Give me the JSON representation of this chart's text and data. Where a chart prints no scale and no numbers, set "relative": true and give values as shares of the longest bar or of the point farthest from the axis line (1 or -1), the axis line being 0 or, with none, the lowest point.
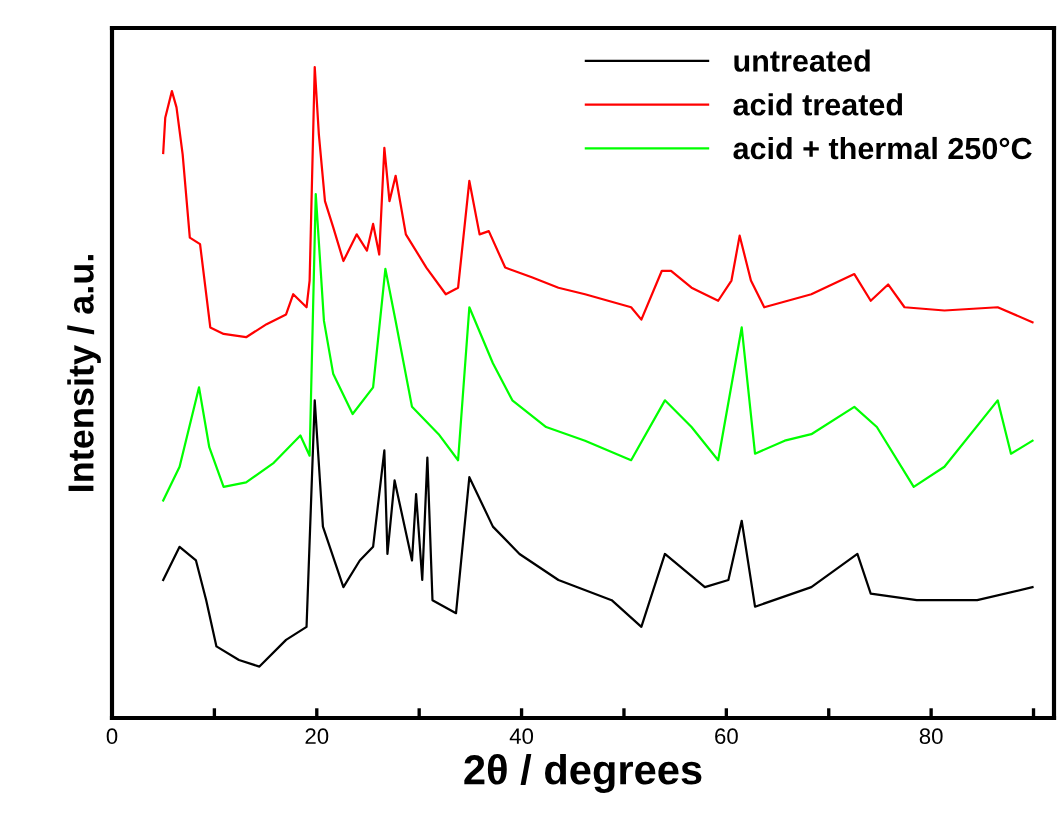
{
  "chart_data": {
    "type": "line",
    "relative": true,
    "xlabel": "2θ / degrees",
    "ylabel": "Intensity / a.u.",
    "xlim": [
      0,
      92
    ],
    "xticks": [
      0,
      {
        "value": 10,
        "label": null
      },
      20,
      {
        "value": 30,
        "label": null
      },
      40,
      {
        "value": 50,
        "label": null
      },
      60,
      {
        "value": 70,
        "label": null
      },
      80,
      {
        "value": 90,
        "label": null
      }
    ],
    "tick_labels": "x",
    "legend": "top right",
    "grid": false,
    "marker": "none",
    "line_style": "solid",
    "series": [
      {
        "name": "untreated",
        "color": "#000000",
        "x": [
          5.0,
          6.6,
          8.2,
          9.2,
          10.2,
          12.4,
          14.4,
          17.0,
          19.0,
          19.8,
          20.6,
          22.6,
          24.2,
          25.5,
          26.6,
          26.9,
          27.6,
          29.3,
          29.7,
          30.3,
          30.8,
          31.3,
          33.6,
          34.9,
          37.2,
          39.8,
          43.6,
          48.8,
          51.7,
          54.0,
          57.9,
          60.2,
          61.5,
          62.8,
          68.3,
          72.8,
          74.1,
          78.6,
          84.5,
          89.9
        ],
        "values": [
          0.212,
          0.263,
          0.242,
          0.181,
          0.11,
          0.089,
          0.079,
          0.12,
          0.14,
          0.488,
          0.294,
          0.201,
          0.242,
          0.263,
          0.411,
          0.252,
          0.365,
          0.242,
          0.344,
          0.212,
          0.4,
          0.181,
          0.161,
          0.37,
          0.294,
          0.252,
          0.212,
          0.181,
          0.14,
          0.252,
          0.201,
          0.212,
          0.303,
          0.171,
          0.201,
          0.252,
          0.191,
          0.181,
          0.181,
          0.201
        ]
      },
      {
        "name": "acid treated",
        "color": "#ff0000",
        "x": [
          5.0,
          5.2,
          5.85,
          6.3,
          6.9,
          7.6,
          8.6,
          9.6,
          10.9,
          13.1,
          15.1,
          17.0,
          17.7,
          19.0,
          19.3,
          19.8,
          20.2,
          20.8,
          21.6,
          22.6,
          23.9,
          24.9,
          25.5,
          26.1,
          26.6,
          27.1,
          27.7,
          28.7,
          30.7,
          32.6,
          33.8,
          34.9,
          35.9,
          36.8,
          38.4,
          41.0,
          43.6,
          46.2,
          50.7,
          51.7,
          53.7,
          54.6,
          56.6,
          59.2,
          60.5,
          61.3,
          62.4,
          63.7,
          68.3,
          72.5,
          74.1,
          75.8,
          77.4,
          81.3,
          86.5,
          89.9
        ],
        "values": [
          0.868,
          0.922,
          0.963,
          0.938,
          0.866,
          0.738,
          0.728,
          0.6,
          0.59,
          0.585,
          0.605,
          0.62,
          0.651,
          0.631,
          0.672,
          1.0,
          0.897,
          0.794,
          0.754,
          0.702,
          0.743,
          0.718,
          0.759,
          0.712,
          0.876,
          0.794,
          0.833,
          0.743,
          0.692,
          0.651,
          0.661,
          0.825,
          0.743,
          0.748,
          0.692,
          0.677,
          0.661,
          0.651,
          0.631,
          0.612,
          0.687,
          0.687,
          0.661,
          0.641,
          0.672,
          0.741,
          0.672,
          0.631,
          0.651,
          0.682,
          0.641,
          0.666,
          0.631,
          0.626,
          0.631,
          0.608
        ]
      },
      {
        "name": "acid + thermal 250°C",
        "color": "#00ff00",
        "x": [
          5.0,
          6.6,
          8.5,
          9.5,
          10.9,
          13.1,
          15.8,
          18.4,
          19.3,
          19.9,
          20.7,
          21.6,
          23.5,
          25.5,
          26.7,
          27.7,
          29.3,
          31.9,
          33.8,
          34.9,
          37.2,
          39.1,
          42.4,
          46.2,
          50.7,
          54.0,
          56.6,
          59.2,
          61.5,
          62.8,
          65.7,
          68.3,
          72.5,
          74.7,
          78.3,
          81.3,
          86.5,
          87.8,
          89.9
        ],
        "values": [
          0.334,
          0.386,
          0.508,
          0.416,
          0.355,
          0.362,
          0.392,
          0.434,
          0.403,
          0.805,
          0.61,
          0.529,
          0.467,
          0.508,
          0.69,
          0.61,
          0.478,
          0.436,
          0.396,
          0.631,
          0.545,
          0.488,
          0.447,
          0.426,
          0.396,
          0.488,
          0.447,
          0.396,
          0.6,
          0.406,
          0.426,
          0.436,
          0.478,
          0.447,
          0.355,
          0.386,
          0.488,
          0.406,
          0.426
        ]
      }
    ]
  }
}
